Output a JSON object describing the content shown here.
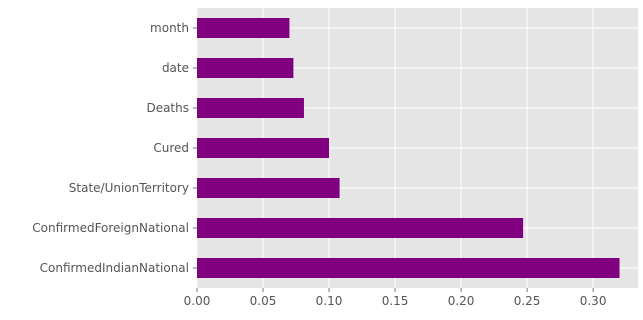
{
  "chart_data": {
    "type": "bar",
    "orientation": "horizontal",
    "categories": [
      "ConfirmedIndianNational",
      "ConfirmedForeignNational",
      "State/UnionTerritory",
      "Cured",
      "Deaths",
      "date",
      "month"
    ],
    "values": [
      0.32,
      0.247,
      0.108,
      0.1,
      0.081,
      0.073,
      0.07
    ],
    "xlim": [
      0,
      0.334
    ],
    "xticks": [
      0.0,
      0.05,
      0.1,
      0.15,
      0.2,
      0.25,
      0.3
    ],
    "xtick_labels": [
      "0.00",
      "0.05",
      "0.10",
      "0.15",
      "0.20",
      "0.25",
      "0.30"
    ],
    "grid": true,
    "style": "ggplot",
    "bar_color": "#800080",
    "background_color": "#e5e5e5",
    "title": "",
    "xlabel": "",
    "ylabel": ""
  }
}
